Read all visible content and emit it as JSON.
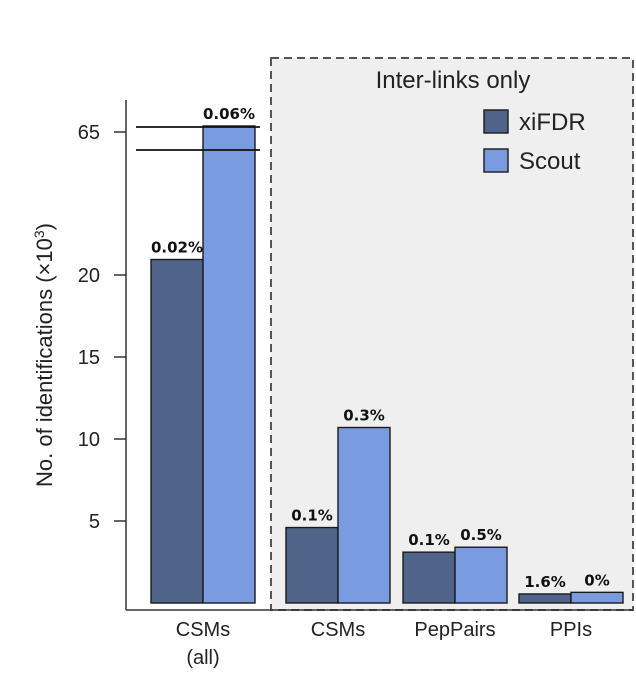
{
  "chart_data": {
    "type": "bar",
    "ylabel_main": "No. of identifications (×10",
    "ylabel_sup": "3",
    "ylabel_close": ")",
    "box_title": "Inter-links only",
    "categories": [
      {
        "label_lines": [
          "CSMs",
          "(all)"
        ]
      },
      {
        "label_lines": [
          "CSMs"
        ]
      },
      {
        "label_lines": [
          "PepPairs"
        ]
      },
      {
        "label_lines": [
          "PPIs"
        ]
      }
    ],
    "series": [
      {
        "name": "xiFDR",
        "color": "#506388",
        "values": [
          22.5,
          4.6,
          3.1,
          0.55
        ],
        "value_labels": [
          "0.02%",
          "0.1%",
          "0.1%",
          "1.6%"
        ]
      },
      {
        "name": "Scout",
        "color": "#7b9be0",
        "values": [
          67,
          10.7,
          3.4,
          0.65
        ],
        "value_labels": [
          "0.06%",
          "0.3%",
          "0.5%",
          "0%"
        ]
      }
    ],
    "y_ticks": [
      {
        "value": 5,
        "label": "5"
      },
      {
        "value": 10,
        "label": "10"
      },
      {
        "value": 15,
        "label": "15"
      },
      {
        "value": 20,
        "label": "20"
      },
      {
        "value": 65,
        "label": "65"
      }
    ],
    "axis_break": true,
    "grid": false,
    "legend_position": "top-right inside box"
  }
}
